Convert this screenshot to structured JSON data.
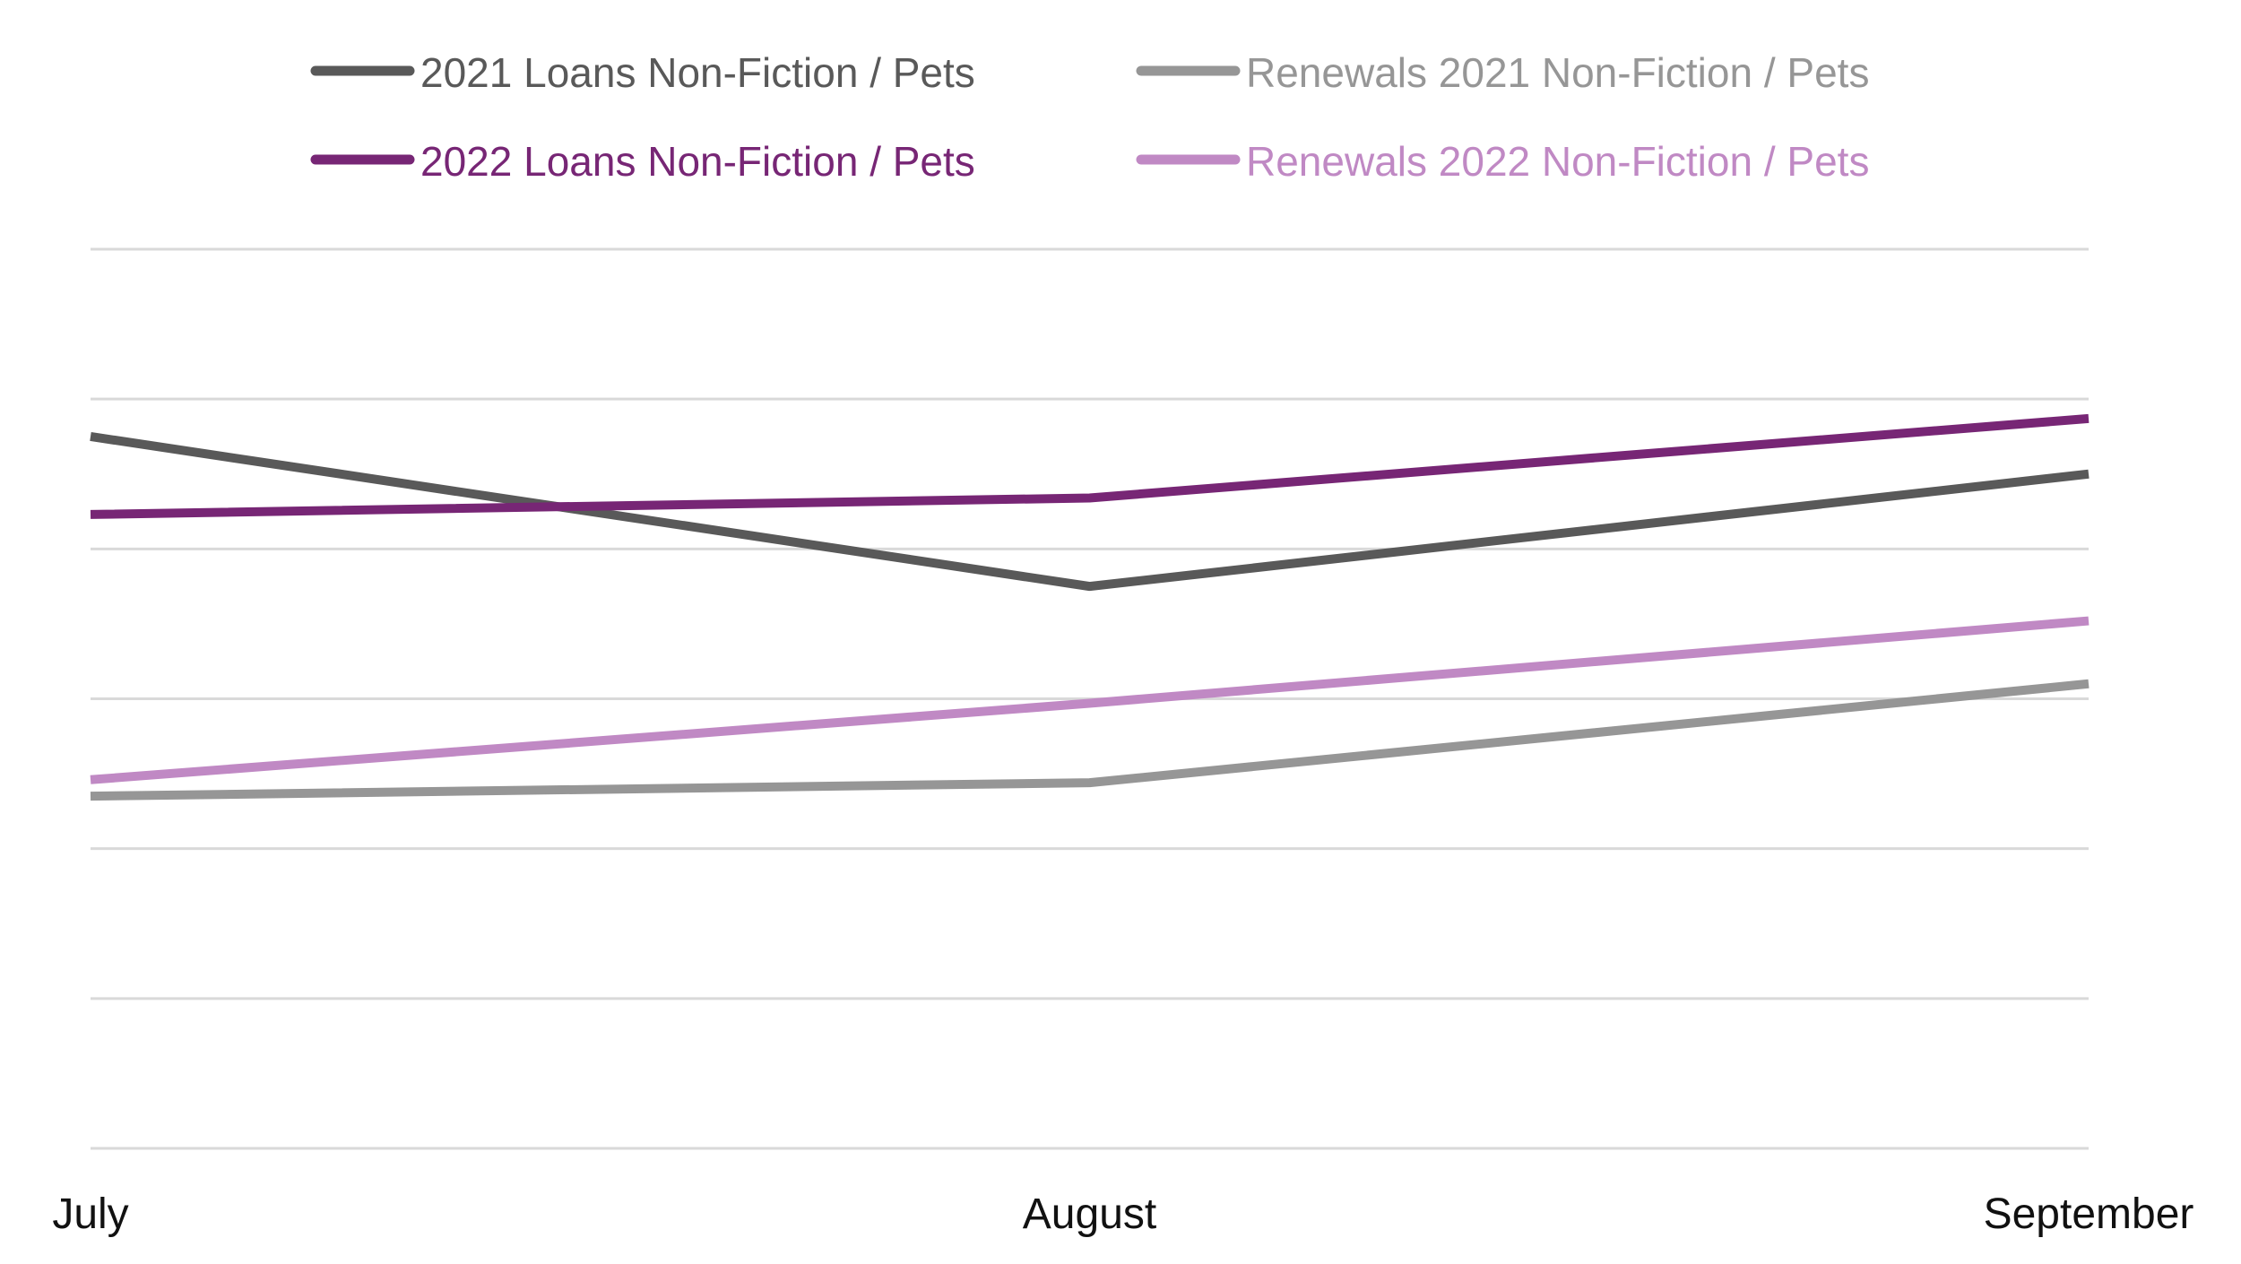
{
  "chart_data": {
    "type": "line",
    "title": "",
    "xlabel": "",
    "ylabel": "",
    "categories": [
      "July",
      "August",
      "September"
    ],
    "ylim": [
      0,
      6
    ],
    "grid": true,
    "legend_position": "top",
    "series": [
      {
        "name": "2021 Loans Non-Fiction / Pets",
        "color": "#595959",
        "values": [
          4.75,
          3.75,
          4.5
        ]
      },
      {
        "name": "Renewals 2021 Non-Fiction / Pets",
        "color": "#969696",
        "values": [
          2.35,
          2.44,
          3.1
        ]
      },
      {
        "name": "2022 Loans Non-Fiction / Pets",
        "color": "#772675",
        "values": [
          4.23,
          4.34,
          4.87
        ]
      },
      {
        "name": "Renewals 2022 Non-Fiction / Pets",
        "color": "#c089c4",
        "values": [
          2.46,
          2.97,
          3.52
        ]
      }
    ]
  }
}
